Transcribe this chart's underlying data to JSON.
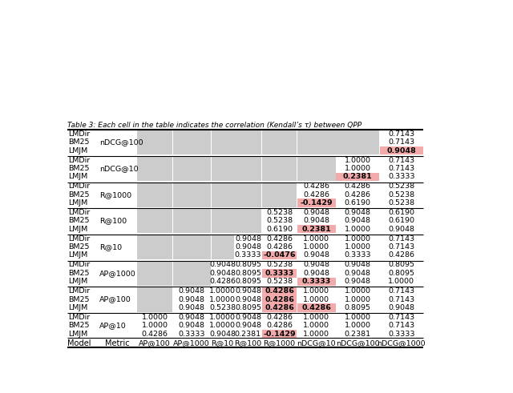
{
  "col_headers": [
    "Model",
    "Metric",
    "AP@100",
    "AP@1000",
    "R@10",
    "R@100",
    "R@1000",
    "nDCG@10",
    "nDCG@100",
    "nDCG@1000"
  ],
  "groups": [
    {
      "metric": "AP@10",
      "rows": [
        {
          "model": "LMJM",
          "vals": [
            "0.4286",
            "0.3333",
            "0.9048",
            "0.2381",
            "-0.1429",
            "1.0000",
            "0.2381",
            "0.3333"
          ],
          "highlights": [
            4
          ]
        },
        {
          "model": "BM25",
          "vals": [
            "1.0000",
            "0.9048",
            "1.0000",
            "0.9048",
            "0.4286",
            "1.0000",
            "1.0000",
            "0.7143"
          ],
          "highlights": []
        },
        {
          "model": "LMDir",
          "vals": [
            "1.0000",
            "0.9048",
            "1.0000",
            "0.9048",
            "0.4286",
            "1.0000",
            "1.0000",
            "0.7143"
          ],
          "highlights": []
        }
      ],
      "gray_cols": []
    },
    {
      "metric": "AP@100",
      "rows": [
        {
          "model": "LMJM",
          "vals": [
            "",
            "0.9048",
            "0.5238",
            "0.8095",
            "0.4286",
            "0.4286",
            "0.8095",
            "0.9048"
          ],
          "highlights": [
            4,
            5
          ]
        },
        {
          "model": "BM25",
          "vals": [
            "",
            "0.9048",
            "1.0000",
            "0.9048",
            "0.4286",
            "1.0000",
            "1.0000",
            "0.7143"
          ],
          "highlights": [
            4
          ]
        },
        {
          "model": "LMDir",
          "vals": [
            "",
            "0.9048",
            "1.0000",
            "0.9048",
            "0.4286",
            "1.0000",
            "1.0000",
            "0.7143"
          ],
          "highlights": [
            4
          ]
        }
      ],
      "gray_cols": [
        0
      ]
    },
    {
      "metric": "AP@1000",
      "rows": [
        {
          "model": "LMJM",
          "vals": [
            "",
            "",
            "0.4286",
            "0.8095",
            "0.5238",
            "0.3333",
            "0.9048",
            "1.0000"
          ],
          "highlights": [
            5
          ]
        },
        {
          "model": "BM25",
          "vals": [
            "",
            "",
            "0.9048",
            "0.8095",
            "0.3333",
            "0.9048",
            "0.9048",
            "0.8095"
          ],
          "highlights": [
            4
          ]
        },
        {
          "model": "LMDir",
          "vals": [
            "",
            "",
            "0.9048",
            "0.8095",
            "0.5238",
            "0.9048",
            "0.9048",
            "0.8095"
          ],
          "highlights": []
        }
      ],
      "gray_cols": [
        0,
        1
      ]
    },
    {
      "metric": "R@10",
      "rows": [
        {
          "model": "LMJM",
          "vals": [
            "",
            "",
            "",
            "0.3333",
            "-0.0476",
            "0.9048",
            "0.3333",
            "0.4286"
          ],
          "highlights": [
            4
          ]
        },
        {
          "model": "BM25",
          "vals": [
            "",
            "",
            "",
            "0.9048",
            "0.4286",
            "1.0000",
            "1.0000",
            "0.7143"
          ],
          "highlights": []
        },
        {
          "model": "LMDir",
          "vals": [
            "",
            "",
            "",
            "0.9048",
            "0.4286",
            "1.0000",
            "1.0000",
            "0.7143"
          ],
          "highlights": []
        }
      ],
      "gray_cols": [
        0,
        1,
        2
      ]
    },
    {
      "metric": "R@100",
      "rows": [
        {
          "model": "LMJM",
          "vals": [
            "",
            "",
            "",
            "",
            "0.6190",
            "0.2381",
            "1.0000",
            "0.9048"
          ],
          "highlights": [
            5
          ]
        },
        {
          "model": "BM25",
          "vals": [
            "",
            "",
            "",
            "",
            "0.5238",
            "0.9048",
            "0.9048",
            "0.6190"
          ],
          "highlights": []
        },
        {
          "model": "LMDir",
          "vals": [
            "",
            "",
            "",
            "",
            "0.5238",
            "0.9048",
            "0.9048",
            "0.6190"
          ],
          "highlights": []
        }
      ],
      "gray_cols": [
        0,
        1,
        2,
        3
      ]
    },
    {
      "metric": "R@1000",
      "rows": [
        {
          "model": "LMJM",
          "vals": [
            "",
            "",
            "",
            "",
            "",
            "-0.1429",
            "0.6190",
            "0.5238"
          ],
          "highlights": [
            5
          ]
        },
        {
          "model": "BM25",
          "vals": [
            "",
            "",
            "",
            "",
            "",
            "0.4286",
            "0.4286",
            "0.5238"
          ],
          "highlights": []
        },
        {
          "model": "LMDir",
          "vals": [
            "",
            "",
            "",
            "",
            "",
            "0.4286",
            "0.4286",
            "0.5238"
          ],
          "highlights": []
        }
      ],
      "gray_cols": [
        0,
        1,
        2,
        3,
        4
      ]
    },
    {
      "metric": "nDCG@10",
      "rows": [
        {
          "model": "LMJM",
          "vals": [
            "",
            "",
            "",
            "",
            "",
            "",
            "0.2381",
            "0.3333"
          ],
          "highlights": [
            6
          ]
        },
        {
          "model": "BM25",
          "vals": [
            "",
            "",
            "",
            "",
            "",
            "",
            "1.0000",
            "0.7143"
          ],
          "highlights": []
        },
        {
          "model": "LMDir",
          "vals": [
            "",
            "",
            "",
            "",
            "",
            "",
            "1.0000",
            "0.7143"
          ],
          "highlights": []
        }
      ],
      "gray_cols": [
        0,
        1,
        2,
        3,
        4,
        5
      ]
    },
    {
      "metric": "nDCG@100",
      "rows": [
        {
          "model": "LMJM",
          "vals": [
            "",
            "",
            "",
            "",
            "",
            "",
            "",
            "0.9048"
          ],
          "highlights": [
            7
          ]
        },
        {
          "model": "BM25",
          "vals": [
            "",
            "",
            "",
            "",
            "",
            "",
            "",
            "0.7143"
          ],
          "highlights": []
        },
        {
          "model": "LMDir",
          "vals": [
            "",
            "",
            "",
            "",
            "",
            "",
            "",
            "0.7143"
          ],
          "highlights": []
        }
      ],
      "gray_cols": [
        0,
        1,
        2,
        3,
        4,
        5,
        6
      ]
    }
  ],
  "col_headers_display": [
    "Model",
    "Metric",
    "AP@100",
    "AP@1000",
    "R@10",
    "R@100",
    "R@1000",
    "nDCG@10",
    "nDCG@100",
    "nDCG@1000"
  ],
  "highlight_color": "#f2aaaa",
  "gray_color": "#cccccc",
  "caption": "Table 3: Each cell in the table indicates the correlation (Kendall’s τ) between QPP"
}
